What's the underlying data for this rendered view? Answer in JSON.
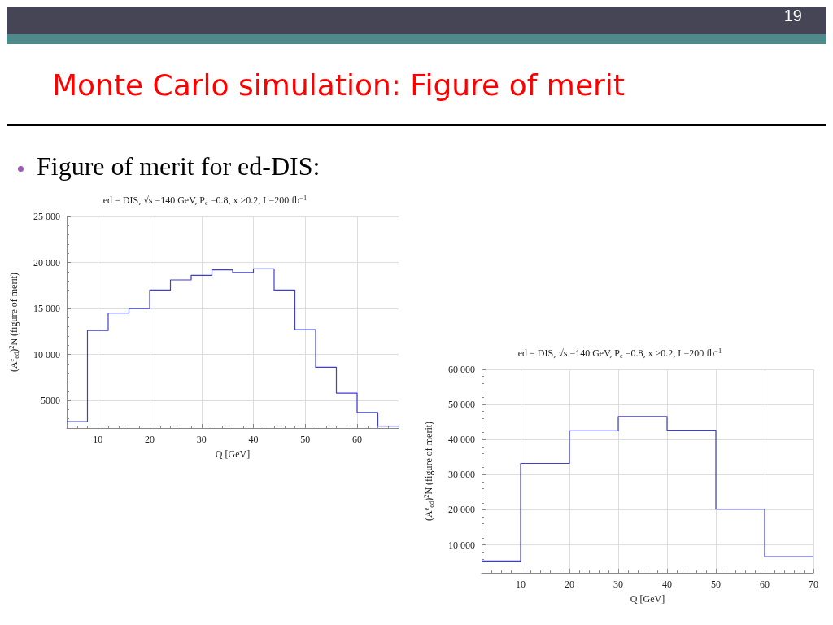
{
  "chart_data": [
    {
      "type": "histogram",
      "title": "ed − DIS, √s =140 GeV, P$_{e}$ =0.8, x >0.2, L=200 fb$^{−1}$",
      "xlabel": "Q [GeV]",
      "ylabel": "(A$^{e}$$_{ed}$)$^{2}$N (figure of merit)",
      "annotations": [
        "19",
        "Monte Carlo simulation: Figure of merit",
        "Figure of merit for ed-DIS:"
      ],
      "bins": [
        4,
        8,
        12,
        16,
        20,
        24,
        28,
        32,
        36,
        40,
        44,
        48,
        52,
        56,
        60,
        64,
        68
      ],
      "values": [
        2700,
        12600,
        14500,
        15000,
        17000,
        18100,
        18600,
        19200,
        18900,
        19300,
        17000,
        12700,
        8600,
        5800,
        3700,
        2200
      ],
      "color": "#3f3fcf",
      "xlim": [
        4,
        68
      ],
      "ylim": [
        2000,
        25000
      ],
      "xticks": [
        10,
        20,
        30,
        40,
        50,
        60
      ],
      "yticks": [
        5000,
        {
          "value": 10000,
          "label": "10 000"
        },
        {
          "value": 15000,
          "label": "15 000"
        },
        {
          "value": 20000,
          "label": "20 000"
        },
        {
          "value": 25000,
          "label": "25 000"
        }
      ],
      "grid": true
    },
    {
      "type": "histogram",
      "title": "ed − DIS, √s =140 GeV, P$_{e}$ =0.8, x >0.2, L=200 fb$^{−1}$",
      "xlabel": "Q [GeV]",
      "ylabel": "(A$^{e}$$_{ed}$)$^{2}$N (figure of merit)",
      "bins": [
        2,
        10,
        20,
        30,
        40,
        50,
        60,
        70
      ],
      "values": [
        5400,
        33200,
        42500,
        46600,
        42700,
        20200,
        6600
      ],
      "color": "#3f3fcf",
      "xlim": [
        2,
        70
      ],
      "ylim": [
        2000,
        60000
      ],
      "xticks": [
        10,
        20,
        30,
        40,
        50,
        60,
        70
      ],
      "yticks": [
        {
          "value": 10000,
          "label": "10 000"
        },
        {
          "value": 20000,
          "label": "20 000"
        },
        {
          "value": 30000,
          "label": "30 000"
        },
        {
          "value": 40000,
          "label": "40 000"
        },
        {
          "value": 50000,
          "label": "50 000"
        },
        {
          "value": 60000,
          "label": "60 000"
        }
      ],
      "grid": true
    }
  ]
}
